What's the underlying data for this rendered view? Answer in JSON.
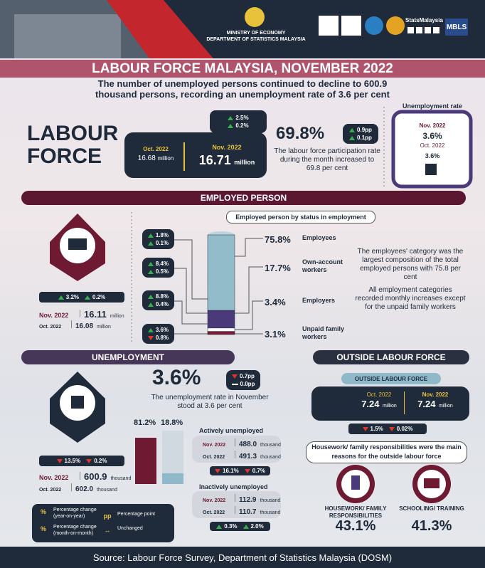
{
  "header": {
    "ministry": "MINISTRY OF ECONOMY",
    "department": "DEPARTMENT OF STATISTICS MALAYSIA",
    "social_handle": "StatsMalaysia",
    "badge": "MBLS"
  },
  "title": "LABOUR FORCE MALAYSIA, NOVEMBER 2022",
  "subtitle": "The number of unemployed persons continued to decline to 600.9 thousand persons, recording an unemployment rate of 3.6 per cent",
  "labour_force": {
    "heading": "LABOUR FORCE",
    "changes": [
      {
        "dir": "up",
        "label": "2.5%"
      },
      {
        "dir": "up",
        "label": "0.2%"
      }
    ],
    "oct": {
      "period": "Oct. 2022",
      "value": "16.68",
      "unit": "million"
    },
    "nov": {
      "period": "Nov. 2022",
      "value": "16.71",
      "unit": "million"
    },
    "participation": {
      "rate": "69.8%",
      "changes": [
        {
          "dir": "up",
          "label": "0.9pp"
        },
        {
          "dir": "up",
          "label": "0.1pp"
        }
      ],
      "text": "The labour force participation rate during the month increased to 69.8 per cent"
    },
    "unemployment_rate": {
      "heading": "Unemployment rate",
      "nov": {
        "period": "Nov. 2022",
        "value": "3.6%"
      },
      "oct": {
        "period": "Oct. 2022",
        "value": "3.6%"
      }
    }
  },
  "employed": {
    "heading": "EMPLOYED PERSON",
    "changes": [
      {
        "dir": "up",
        "label": "3.2%"
      },
      {
        "dir": "up",
        "label": "0.2%"
      }
    ],
    "nov": {
      "period": "Nov. 2022",
      "value": "16.11",
      "unit": "million"
    },
    "oct": {
      "period": "Oct. 2022",
      "value": "16.08",
      "unit": "million"
    },
    "status_heading": "Employed person by status in employment",
    "status": [
      {
        "name": "Employees",
        "share": {
          "value": 75.8,
          "label": "75.8%"
        },
        "color": "#93bccb",
        "changes": [
          {
            "dir": "up",
            "label": "1.8%"
          },
          {
            "dir": "up",
            "label": "0.1%"
          }
        ]
      },
      {
        "name": "Own-account workers",
        "share": {
          "value": 17.7,
          "label": "17.7%"
        },
        "color": "#4b3a7a",
        "changes": [
          {
            "dir": "up",
            "label": "8.4%"
          },
          {
            "dir": "up",
            "label": "0.5%"
          }
        ]
      },
      {
        "name": "Employers",
        "share": {
          "value": 3.4,
          "label": "3.4%"
        },
        "color": "#ffffff",
        "changes": [
          {
            "dir": "up",
            "label": "8.8%"
          },
          {
            "dir": "up",
            "label": "0.4%"
          }
        ]
      },
      {
        "name": "Unpaid family workers",
        "share": {
          "value": 3.1,
          "label": "3.1%"
        },
        "color": "#7a1a34",
        "changes": [
          {
            "dir": "up",
            "label": "3.6%"
          },
          {
            "dir": "down",
            "label": "0.8%"
          }
        ]
      }
    ],
    "notes": [
      "The employees' category was the largest composition of the total employed persons with 75.8 per cent",
      "All employment categories recorded monthly increases except for the unpaid family workers"
    ]
  },
  "unemployment": {
    "heading": "UNEMPLOYMENT",
    "changes": [
      {
        "dir": "down",
        "label": "13.5%"
      },
      {
        "dir": "down",
        "label": "0.2%"
      }
    ],
    "nov": {
      "period": "Nov. 2022",
      "value": "600.9",
      "unit": "thousand"
    },
    "oct": {
      "period": "Oct. 2022",
      "value": "602.0",
      "unit": "thousand"
    },
    "rate": "3.6%",
    "rate_changes": [
      {
        "dir": "down",
        "label": "0.7pp"
      },
      {
        "dir": "flat",
        "label": "0.0pp"
      }
    ],
    "rate_text": "The unemployment rate in November stood at 3.6 per cent",
    "groups": [
      {
        "name": "Actively unemployed",
        "share": {
          "value": 81.2,
          "label": "81.2%"
        },
        "color": "#6e1a33",
        "nov": {
          "period": "Nov. 2022",
          "value": "488.0",
          "unit": "thousand"
        },
        "oct": {
          "period": "Oct. 2022",
          "value": "491.3",
          "unit": "thousand"
        },
        "changes": [
          {
            "dir": "down",
            "label": "16.1%"
          },
          {
            "dir": "down",
            "label": "0.7%"
          }
        ]
      },
      {
        "name": "Inactively unemployed",
        "share": {
          "value": 18.8,
          "label": "18.8%"
        },
        "color": "#8fb8c8",
        "nov": {
          "period": "Nov. 2022",
          "value": "112.9",
          "unit": "thousand"
        },
        "oct": {
          "period": "Oct. 2022",
          "value": "110.7",
          "unit": "thousand"
        },
        "changes": [
          {
            "dir": "up",
            "label": "0.3%"
          },
          {
            "dir": "up",
            "label": "2.0%"
          }
        ]
      }
    ]
  },
  "legend": [
    {
      "symbol": "%",
      "text": "Percentage change (year-on-year)"
    },
    {
      "symbol": "%",
      "text": "Percentage change (month-on-month)"
    },
    {
      "symbol": "pp",
      "text": "Percentage point"
    },
    {
      "symbol": "↔",
      "text": "Unchanged"
    }
  ],
  "outside": {
    "heading": "OUTSIDE LABOUR FORCE",
    "subheading": "OUTSIDE LABOUR FORCE",
    "oct": {
      "period": "Oct. 2022",
      "value": "7.24",
      "unit": "million"
    },
    "nov": {
      "period": "Nov. 2022",
      "value": "7.24",
      "unit": "million"
    },
    "changes": [
      {
        "dir": "down",
        "label": "1.5%"
      },
      {
        "dir": "down",
        "label": "0.02%"
      }
    ],
    "note": "Housework/ family responsibilities were the main reasons for the outside labour force",
    "reasons": [
      {
        "name": "HOUSEWORK/ FAMILY RESPONSIBILITIES",
        "share": "43.1%"
      },
      {
        "name": "SCHOOLING/ TRAINING",
        "share": "41.3%"
      }
    ]
  },
  "source": "Source: Labour Force Survey, Department of Statistics Malaysia (DOSM)"
}
